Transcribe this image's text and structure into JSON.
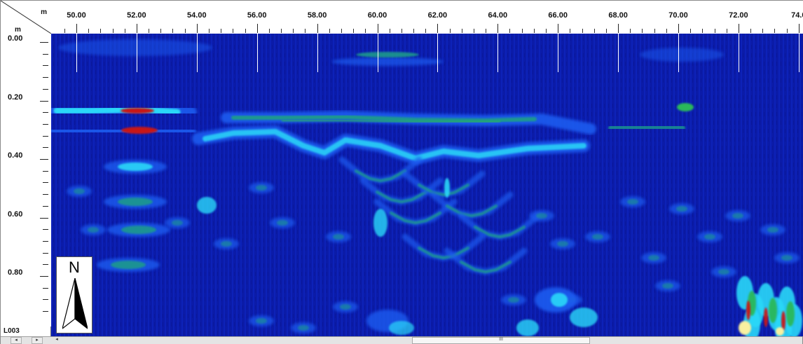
{
  "ruler": {
    "unit_top": "m",
    "unit_left": "m",
    "x_labels": [
      "50.00",
      "52.00",
      "54.00",
      "56.00",
      "58.00",
      "60.00",
      "62.00",
      "64.00",
      "66.00",
      "68.00",
      "70.00",
      "72.00",
      "74.0"
    ],
    "y_labels": [
      "0.00",
      "0.20",
      "0.40",
      "0.60",
      "0.80"
    ]
  },
  "line_label": "L003",
  "north_arrow": {
    "letter": "N"
  },
  "scrollbar": {
    "left_arrow": "◂",
    "right_arrow": "▸",
    "scroll_left": "◂",
    "thumb_grip": "III"
  },
  "colors": {
    "background_blue": "#0a1aa8",
    "mid_blue": "#1a5cf0",
    "cyan": "#2ad8f8",
    "teal": "#1a9a8c",
    "green": "#2cb85a",
    "red": "#c81818",
    "yellow": "#f8f0a0"
  }
}
